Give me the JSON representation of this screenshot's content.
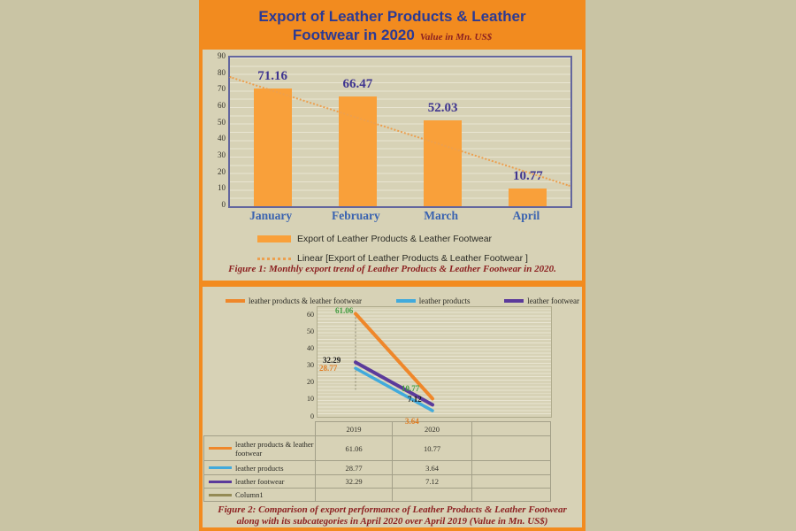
{
  "header": {
    "title_line1": "Export of Leather Products & Leather",
    "title_line2": "Footwear in 2020",
    "subtitle": "Value in Mn. US$"
  },
  "figure1": {
    "legend": [
      {
        "swatch": "bar",
        "label": "Export of Leather Products & Leather Footwear"
      },
      {
        "swatch": "dotted-line",
        "label": "Linear [Export of Leather Products & Leather Footwear ]"
      }
    ],
    "caption": "Figure 1: Monthly export trend of Leather Products & Leather Footwear in 2020."
  },
  "figure2": {
    "caption_line1": "Figure 2: Comparison of export performance of Leather Products & Leather Footwear",
    "caption_line2": "along with its subcategories in April 2020 over April 2019 (Value in Mn. US$)"
  },
  "chart_data": [
    {
      "type": "bar",
      "title": "Export of Leather Products & Leather Footwear in 2020",
      "categories": [
        "January",
        "February",
        "March",
        "April"
      ],
      "values": [
        71.16,
        66.47,
        52.03,
        10.77
      ],
      "value_labels": [
        "71.16",
        "66.47",
        "52.03",
        "10.77"
      ],
      "ylim": [
        0,
        90
      ],
      "yticks": [
        0,
        10,
        20,
        30,
        40,
        50,
        60,
        70,
        80,
        90
      ],
      "bar_color": "#f9a03a",
      "grid": "on",
      "legend_position": "bottom",
      "trendline": {
        "label": "Linear [Export of Leather Products & Leather Footwear ]",
        "type": "linear",
        "start_value": 79,
        "end_value": 13,
        "color": "#ec9f4e",
        "style": "dotted"
      }
    },
    {
      "type": "line",
      "categories": [
        "2019",
        "2020"
      ],
      "series": [
        {
          "name": "leather products & leather footwear",
          "values": [
            61.06,
            10.77
          ],
          "color": "#ef872a",
          "label_color": "#3f9c3f"
        },
        {
          "name": "leather products",
          "values": [
            28.77,
            3.64
          ],
          "color": "#41aadc",
          "label_color": "#e07b20"
        },
        {
          "name": "leather footwear",
          "values": [
            32.29,
            7.12
          ],
          "color": "#5b3a9b",
          "label_color": "#1a1a1a"
        },
        {
          "name": "Column1",
          "values": [],
          "color": "#948a54",
          "label_color": "#1a1a1a"
        }
      ],
      "ylim": [
        0,
        65
      ],
      "yticks": [
        0,
        10,
        20,
        30,
        40,
        50,
        60
      ],
      "grid": "on",
      "legend_position": "top",
      "table": {
        "columns": [
          "",
          "2019",
          "2020",
          ""
        ],
        "rows": [
          {
            "label": "leather products & leather footwear",
            "v2019": "61.06",
            "v2020": "10.77",
            "extra": ""
          },
          {
            "label": "leather products",
            "v2019": "28.77",
            "v2020": "3.64",
            "extra": ""
          },
          {
            "label": "leather footwear",
            "v2019": "32.29",
            "v2020": "7.12",
            "extra": ""
          },
          {
            "label": "Column1",
            "v2019": "",
            "v2020": "",
            "extra": ""
          }
        ]
      }
    }
  ]
}
